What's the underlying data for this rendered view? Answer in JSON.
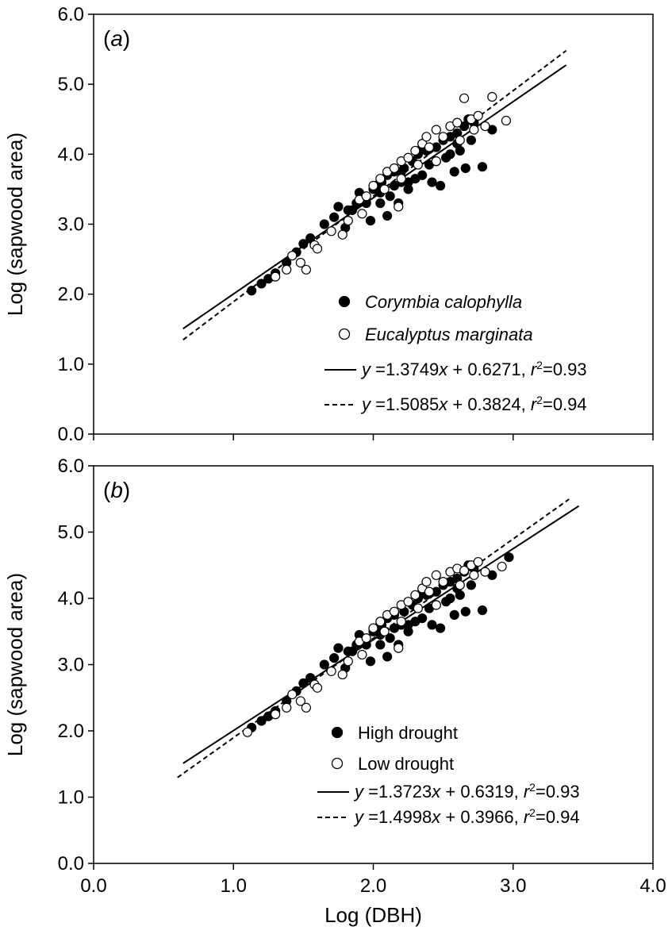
{
  "chart_data": [
    {
      "type": "scatter",
      "panel_label": {
        "open": "(",
        "letter": "a",
        "close": ")"
      },
      "xlabel": "",
      "ylabel": "Log (sapwood area)",
      "xlim": [
        0,
        4
      ],
      "ylim": [
        0,
        6
      ],
      "xticks": [
        0,
        1,
        2,
        3,
        4
      ],
      "xtick_labels": [
        "",
        "",
        "",
        "",
        ""
      ],
      "yticks": [
        0,
        1,
        2,
        3,
        4,
        5,
        6
      ],
      "ytick_labels": [
        "0.0",
        "1.0",
        "2.0",
        "3.0",
        "4.0",
        "5.0",
        "6.0"
      ],
      "legend_position": "bottom-right",
      "series": [
        {
          "name": "Corymbia calophylla",
          "marker": "filled-circle",
          "points": [
            [
              1.13,
              2.05
            ],
            [
              1.2,
              2.15
            ],
            [
              1.25,
              2.22
            ],
            [
              1.3,
              2.3
            ],
            [
              1.38,
              2.45
            ],
            [
              1.45,
              2.6
            ],
            [
              1.5,
              2.72
            ],
            [
              1.55,
              2.8
            ],
            [
              1.65,
              3.0
            ],
            [
              1.72,
              3.1
            ],
            [
              1.75,
              3.25
            ],
            [
              1.8,
              2.95
            ],
            [
              1.85,
              3.2
            ],
            [
              1.88,
              3.3
            ],
            [
              1.9,
              3.45
            ],
            [
              1.95,
              3.3
            ],
            [
              2.0,
              3.5
            ],
            [
              2.02,
              3.55
            ],
            [
              2.05,
              3.45
            ],
            [
              2.06,
              3.6
            ],
            [
              2.1,
              3.7
            ],
            [
              2.12,
              3.4
            ],
            [
              2.15,
              3.75
            ],
            [
              2.18,
              3.3
            ],
            [
              2.2,
              3.6
            ],
            [
              2.22,
              3.8
            ],
            [
              2.25,
              3.5
            ],
            [
              2.28,
              3.9
            ],
            [
              2.3,
              3.65
            ],
            [
              2.32,
              4.0
            ],
            [
              2.35,
              3.7
            ],
            [
              2.38,
              4.05
            ],
            [
              2.4,
              3.85
            ],
            [
              2.42,
              3.6
            ],
            [
              2.45,
              4.1
            ],
            [
              2.48,
              3.55
            ],
            [
              2.5,
              4.2
            ],
            [
              2.52,
              3.95
            ],
            [
              2.55,
              4.25
            ],
            [
              2.58,
              3.75
            ],
            [
              2.6,
              4.3
            ],
            [
              2.62,
              4.05
            ],
            [
              2.65,
              4.4
            ],
            [
              2.66,
              3.8
            ],
            [
              2.7,
              4.2
            ],
            [
              2.72,
              4.45
            ],
            [
              2.78,
              3.82
            ],
            [
              2.85,
              4.35
            ],
            [
              2.1,
              3.12
            ],
            [
              1.98,
              3.05
            ],
            [
              2.15,
              3.55
            ],
            [
              2.35,
              4.1
            ],
            [
              2.55,
              4.0
            ],
            [
              2.45,
              3.9
            ],
            [
              2.25,
              3.6
            ],
            [
              2.05,
              3.3
            ],
            [
              1.82,
              3.2
            ],
            [
              2.6,
              4.15
            ],
            [
              2.68,
              4.5
            ],
            [
              2.2,
              3.75
            ]
          ]
        },
        {
          "name": "Eucalyptus marginata",
          "marker": "open-circle",
          "points": [
            [
              1.3,
              2.25
            ],
            [
              1.38,
              2.35
            ],
            [
              1.42,
              2.55
            ],
            [
              1.48,
              2.45
            ],
            [
              1.52,
              2.35
            ],
            [
              1.58,
              2.7
            ],
            [
              1.6,
              2.65
            ],
            [
              1.7,
              2.9
            ],
            [
              1.78,
              2.85
            ],
            [
              1.82,
              3.05
            ],
            [
              1.9,
              3.35
            ],
            [
              1.95,
              3.4
            ],
            [
              2.0,
              3.55
            ],
            [
              2.05,
              3.65
            ],
            [
              2.1,
              3.75
            ],
            [
              2.15,
              3.8
            ],
            [
              2.18,
              3.25
            ],
            [
              2.2,
              3.9
            ],
            [
              2.25,
              3.95
            ],
            [
              2.3,
              4.05
            ],
            [
              2.35,
              4.15
            ],
            [
              2.38,
              4.25
            ],
            [
              2.4,
              4.1
            ],
            [
              2.45,
              4.35
            ],
            [
              2.5,
              4.25
            ],
            [
              2.55,
              4.4
            ],
            [
              2.6,
              4.45
            ],
            [
              2.65,
              4.8
            ],
            [
              2.7,
              4.5
            ],
            [
              2.75,
              4.55
            ],
            [
              2.8,
              4.4
            ],
            [
              2.85,
              4.82
            ],
            [
              2.95,
              4.48
            ],
            [
              2.2,
              3.65
            ],
            [
              2.08,
              3.5
            ],
            [
              1.92,
              3.15
            ],
            [
              2.32,
              3.85
            ],
            [
              2.45,
              3.9
            ],
            [
              2.62,
              4.2
            ],
            [
              2.72,
              4.35
            ]
          ]
        }
      ],
      "regression_lines": [
        {
          "series": "Corymbia calophylla",
          "style": "solid",
          "slope": 1.3749,
          "intercept": 0.6271,
          "x_range": [
            0.64,
            3.38
          ],
          "label_text": "=1.3749",
          "label_text2": " + 0.6271, ",
          "label_r2": "=0.93"
        },
        {
          "series": "Eucalyptus marginata",
          "style": "dashed",
          "slope": 1.5085,
          "intercept": 0.3824,
          "x_range": [
            0.64,
            3.38
          ],
          "label_text": "=1.5085",
          "label_text2": " + 0.3824, ",
          "label_r2": "=0.94"
        }
      ]
    },
    {
      "type": "scatter",
      "panel_label": {
        "open": "(",
        "letter": "b",
        "close": ")"
      },
      "xlabel": "Log (DBH)",
      "ylabel": "Log (sapwood area)",
      "xlim": [
        0,
        4
      ],
      "ylim": [
        0,
        6
      ],
      "xticks": [
        0,
        1,
        2,
        3,
        4
      ],
      "xtick_labels": [
        "0.0",
        "1.0",
        "2.0",
        "3.0",
        "4.0"
      ],
      "yticks": [
        0,
        1,
        2,
        3,
        4,
        5,
        6
      ],
      "ytick_labels": [
        "0.0",
        "1.0",
        "2.0",
        "3.0",
        "4.0",
        "5.0",
        "6.0"
      ],
      "legend_position": "bottom-right",
      "series": [
        {
          "name": "High drought",
          "marker": "filled-circle",
          "points": [
            [
              1.13,
              2.05
            ],
            [
              1.2,
              2.15
            ],
            [
              1.25,
              2.22
            ],
            [
              1.3,
              2.3
            ],
            [
              1.38,
              2.45
            ],
            [
              1.45,
              2.6
            ],
            [
              1.5,
              2.72
            ],
            [
              1.55,
              2.8
            ],
            [
              1.65,
              3.0
            ],
            [
              1.72,
              3.1
            ],
            [
              1.75,
              3.25
            ],
            [
              1.8,
              2.95
            ],
            [
              1.85,
              3.2
            ],
            [
              1.88,
              3.3
            ],
            [
              1.9,
              3.45
            ],
            [
              1.95,
              3.3
            ],
            [
              2.0,
              3.5
            ],
            [
              2.02,
              3.55
            ],
            [
              2.05,
              3.45
            ],
            [
              2.06,
              3.6
            ],
            [
              2.1,
              3.7
            ],
            [
              2.12,
              3.4
            ],
            [
              2.15,
              3.75
            ],
            [
              2.18,
              3.3
            ],
            [
              2.2,
              3.6
            ],
            [
              2.22,
              3.8
            ],
            [
              2.25,
              3.5
            ],
            [
              2.28,
              3.9
            ],
            [
              2.3,
              3.65
            ],
            [
              2.32,
              4.0
            ],
            [
              2.35,
              3.7
            ],
            [
              2.38,
              4.05
            ],
            [
              2.4,
              3.85
            ],
            [
              2.42,
              3.6
            ],
            [
              2.45,
              4.1
            ],
            [
              2.48,
              3.55
            ],
            [
              2.5,
              4.2
            ],
            [
              2.52,
              3.95
            ],
            [
              2.55,
              4.25
            ],
            [
              2.58,
              3.75
            ],
            [
              2.6,
              4.3
            ],
            [
              2.62,
              4.05
            ],
            [
              2.65,
              4.4
            ],
            [
              2.66,
              3.8
            ],
            [
              2.7,
              4.2
            ],
            [
              2.72,
              4.45
            ],
            [
              2.78,
              3.82
            ],
            [
              2.85,
              4.35
            ],
            [
              2.97,
              4.62
            ],
            [
              2.1,
              3.12
            ],
            [
              1.98,
              3.05
            ],
            [
              2.15,
              3.55
            ],
            [
              2.35,
              4.1
            ],
            [
              2.55,
              4.0
            ],
            [
              2.45,
              3.9
            ],
            [
              2.25,
              3.6
            ],
            [
              2.05,
              3.3
            ],
            [
              1.82,
              3.2
            ],
            [
              2.6,
              4.15
            ],
            [
              2.68,
              4.5
            ]
          ]
        },
        {
          "name": "Low drought",
          "marker": "open-circle",
          "points": [
            [
              1.1,
              1.98
            ],
            [
              1.3,
              2.25
            ],
            [
              1.38,
              2.35
            ],
            [
              1.42,
              2.55
            ],
            [
              1.48,
              2.45
            ],
            [
              1.52,
              2.35
            ],
            [
              1.58,
              2.7
            ],
            [
              1.6,
              2.65
            ],
            [
              1.7,
              2.9
            ],
            [
              1.78,
              2.85
            ],
            [
              1.82,
              3.05
            ],
            [
              1.9,
              3.35
            ],
            [
              1.95,
              3.4
            ],
            [
              2.0,
              3.55
            ],
            [
              2.05,
              3.65
            ],
            [
              2.1,
              3.75
            ],
            [
              2.15,
              3.8
            ],
            [
              2.18,
              3.25
            ],
            [
              2.2,
              3.9
            ],
            [
              2.25,
              3.95
            ],
            [
              2.3,
              4.05
            ],
            [
              2.35,
              4.15
            ],
            [
              2.38,
              4.25
            ],
            [
              2.4,
              4.1
            ],
            [
              2.45,
              4.35
            ],
            [
              2.5,
              4.25
            ],
            [
              2.55,
              4.4
            ],
            [
              2.6,
              4.45
            ],
            [
              2.65,
              4.42
            ],
            [
              2.7,
              4.5
            ],
            [
              2.75,
              4.55
            ],
            [
              2.8,
              4.4
            ],
            [
              2.92,
              4.48
            ],
            [
              2.2,
              3.65
            ],
            [
              2.08,
              3.5
            ],
            [
              1.92,
              3.15
            ],
            [
              2.32,
              3.85
            ],
            [
              2.45,
              3.9
            ],
            [
              2.62,
              4.2
            ],
            [
              2.72,
              4.35
            ]
          ]
        }
      ],
      "regression_lines": [
        {
          "series": "High drought",
          "style": "solid",
          "slope": 1.3723,
          "intercept": 0.6319,
          "x_range": [
            0.64,
            3.47
          ],
          "label_text": "=1.3723",
          "label_text2": " + 0.6319, ",
          "label_r2": "=0.93"
        },
        {
          "series": "Low drought",
          "style": "dashed",
          "slope": 1.4998,
          "intercept": 0.3966,
          "x_range": [
            0.6,
            3.4
          ],
          "label_text": "=1.4998",
          "label_text2": " + 0.3966, ",
          "label_r2": "=0.94"
        }
      ]
    }
  ]
}
